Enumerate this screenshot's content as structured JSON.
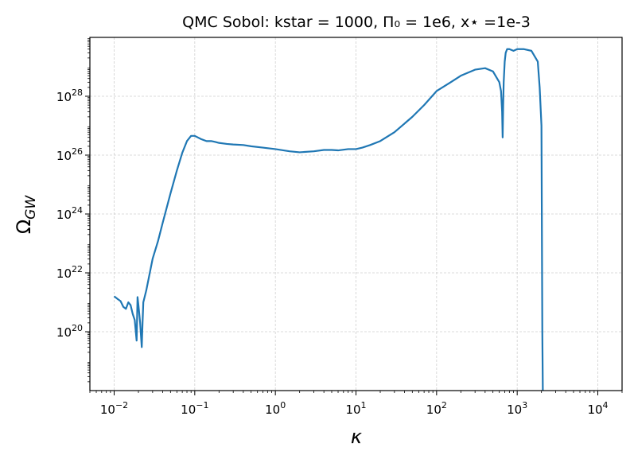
{
  "chart_data": {
    "type": "line",
    "title": "QMC Sobol: kstar = 1000, Π₀ = 1e6, x⋆ =1e-3",
    "xlabel": "κ",
    "ylabel": "Ω_GW",
    "xscale": "log",
    "yscale": "log",
    "xlim": [
      0.005,
      20000
    ],
    "ylim": [
      1e+18,
      1e+30
    ],
    "grid": true,
    "line_color": "#1f77b4",
    "x_ticks": [
      {
        "value": 0.01,
        "base": "10",
        "exp": "−2"
      },
      {
        "value": 0.1,
        "base": "10",
        "exp": "−1"
      },
      {
        "value": 1,
        "base": "10",
        "exp": "0"
      },
      {
        "value": 10,
        "base": "10",
        "exp": "1"
      },
      {
        "value": 100,
        "base": "10",
        "exp": "2"
      },
      {
        "value": 1000,
        "base": "10",
        "exp": "3"
      },
      {
        "value": 10000,
        "base": "10",
        "exp": "4"
      }
    ],
    "y_ticks": [
      {
        "value": 1e+20,
        "base": "10",
        "exp": "20"
      },
      {
        "value": 1e+22,
        "base": "10",
        "exp": "22"
      },
      {
        "value": 1e+24,
        "base": "10",
        "exp": "24"
      },
      {
        "value": 1e+26,
        "base": "10",
        "exp": "26"
      },
      {
        "value": 1e+28,
        "base": "10",
        "exp": "28"
      }
    ],
    "series": [
      {
        "x": [
          0.01,
          0.011,
          0.012,
          0.013,
          0.014,
          0.015,
          0.016,
          0.017,
          0.018,
          0.019,
          0.0195,
          0.02,
          0.021,
          0.022,
          0.0225,
          0.023,
          0.025,
          0.03,
          0.035,
          0.04,
          0.05,
          0.06,
          0.07,
          0.08,
          0.09,
          0.1,
          0.12,
          0.14,
          0.16,
          0.18,
          0.2,
          0.25,
          0.3,
          0.4,
          0.5,
          0.7,
          1.0,
          1.5,
          2.0,
          3.0,
          4.0,
          5.0,
          6.0,
          8.0,
          10.0,
          12.0,
          15.0,
          20.0,
          30.0,
          50.0,
          70.0,
          100,
          150,
          200,
          300,
          400,
          500,
          600,
          630,
          650,
          660,
          670,
          680,
          700,
          720,
          750,
          800,
          900,
          1000,
          1200,
          1500,
          1800,
          1900,
          2000,
          2050,
          2080,
          2100
        ],
        "y": [
          1.6e+21,
          1.3e+21,
          1.1e+21,
          7e+20,
          6e+20,
          1e+21,
          8e+20,
          4e+20,
          2.5e+20,
          5e+19,
          1.5e+21,
          8e+20,
          2e+20,
          3e+19,
          2e+20,
          1e+21,
          2.5e+21,
          3e+22,
          1.2e+23,
          5e+23,
          5e+24,
          3e+25,
          1.2e+26,
          3e+26,
          4.5e+26,
          4.5e+26,
          3.5e+26,
          3e+26,
          3e+26,
          2.8e+26,
          2.6e+26,
          2.4e+26,
          2.3e+26,
          2.2e+26,
          2e+26,
          1.8e+26,
          1.6e+26,
          1.35e+26,
          1.25e+26,
          1.35e+26,
          1.5e+26,
          1.5e+26,
          1.45e+26,
          1.6e+26,
          1.6e+26,
          1.8e+26,
          2.2e+26,
          3e+26,
          6e+26,
          2e+27,
          5e+27,
          1.5e+28,
          3e+28,
          5e+28,
          8e+28,
          9e+28,
          7e+28,
          3e+28,
          1.5e+28,
          3e+27,
          4e+26,
          5e+27,
          3e+28,
          1.5e+29,
          3e+29,
          4e+29,
          4e+29,
          3.5e+29,
          4e+29,
          4e+29,
          3.5e+29,
          1.5e+29,
          2e+28,
          1e+27,
          1e+20,
          1e+18,
          1e+17
        ]
      }
    ]
  }
}
